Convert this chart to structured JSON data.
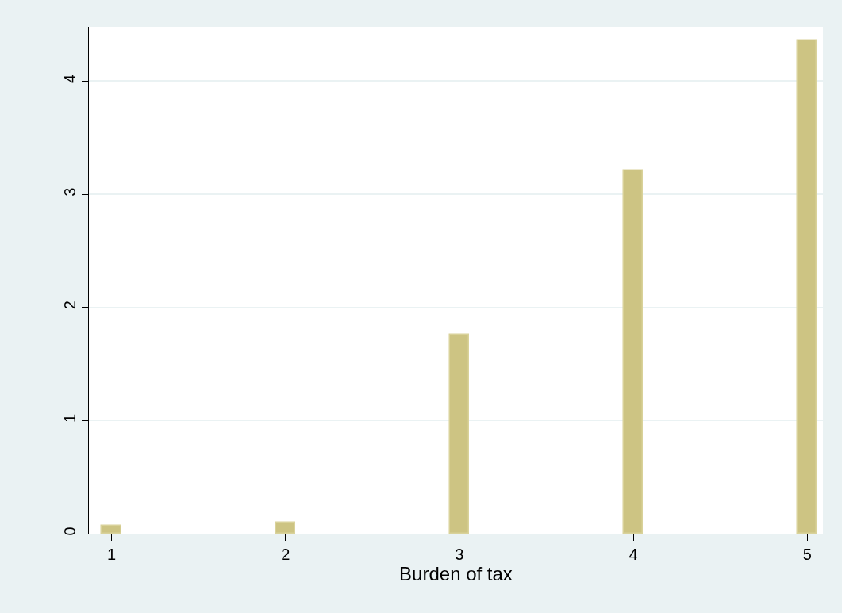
{
  "chart_data": {
    "type": "bar",
    "xlabel": "Burden of tax",
    "x": [
      1,
      2,
      3,
      4,
      5
    ],
    "values": [
      0.07,
      0.1,
      1.76,
      3.21,
      4.36
    ],
    "color": "#cdc483",
    "xlim": [
      0.87,
      5.09
    ],
    "xticks": [
      1,
      2,
      3,
      4,
      5
    ],
    "ylim": [
      0,
      4.48
    ],
    "yticks": [
      0,
      1,
      2,
      3,
      4
    ],
    "grid": "y"
  }
}
